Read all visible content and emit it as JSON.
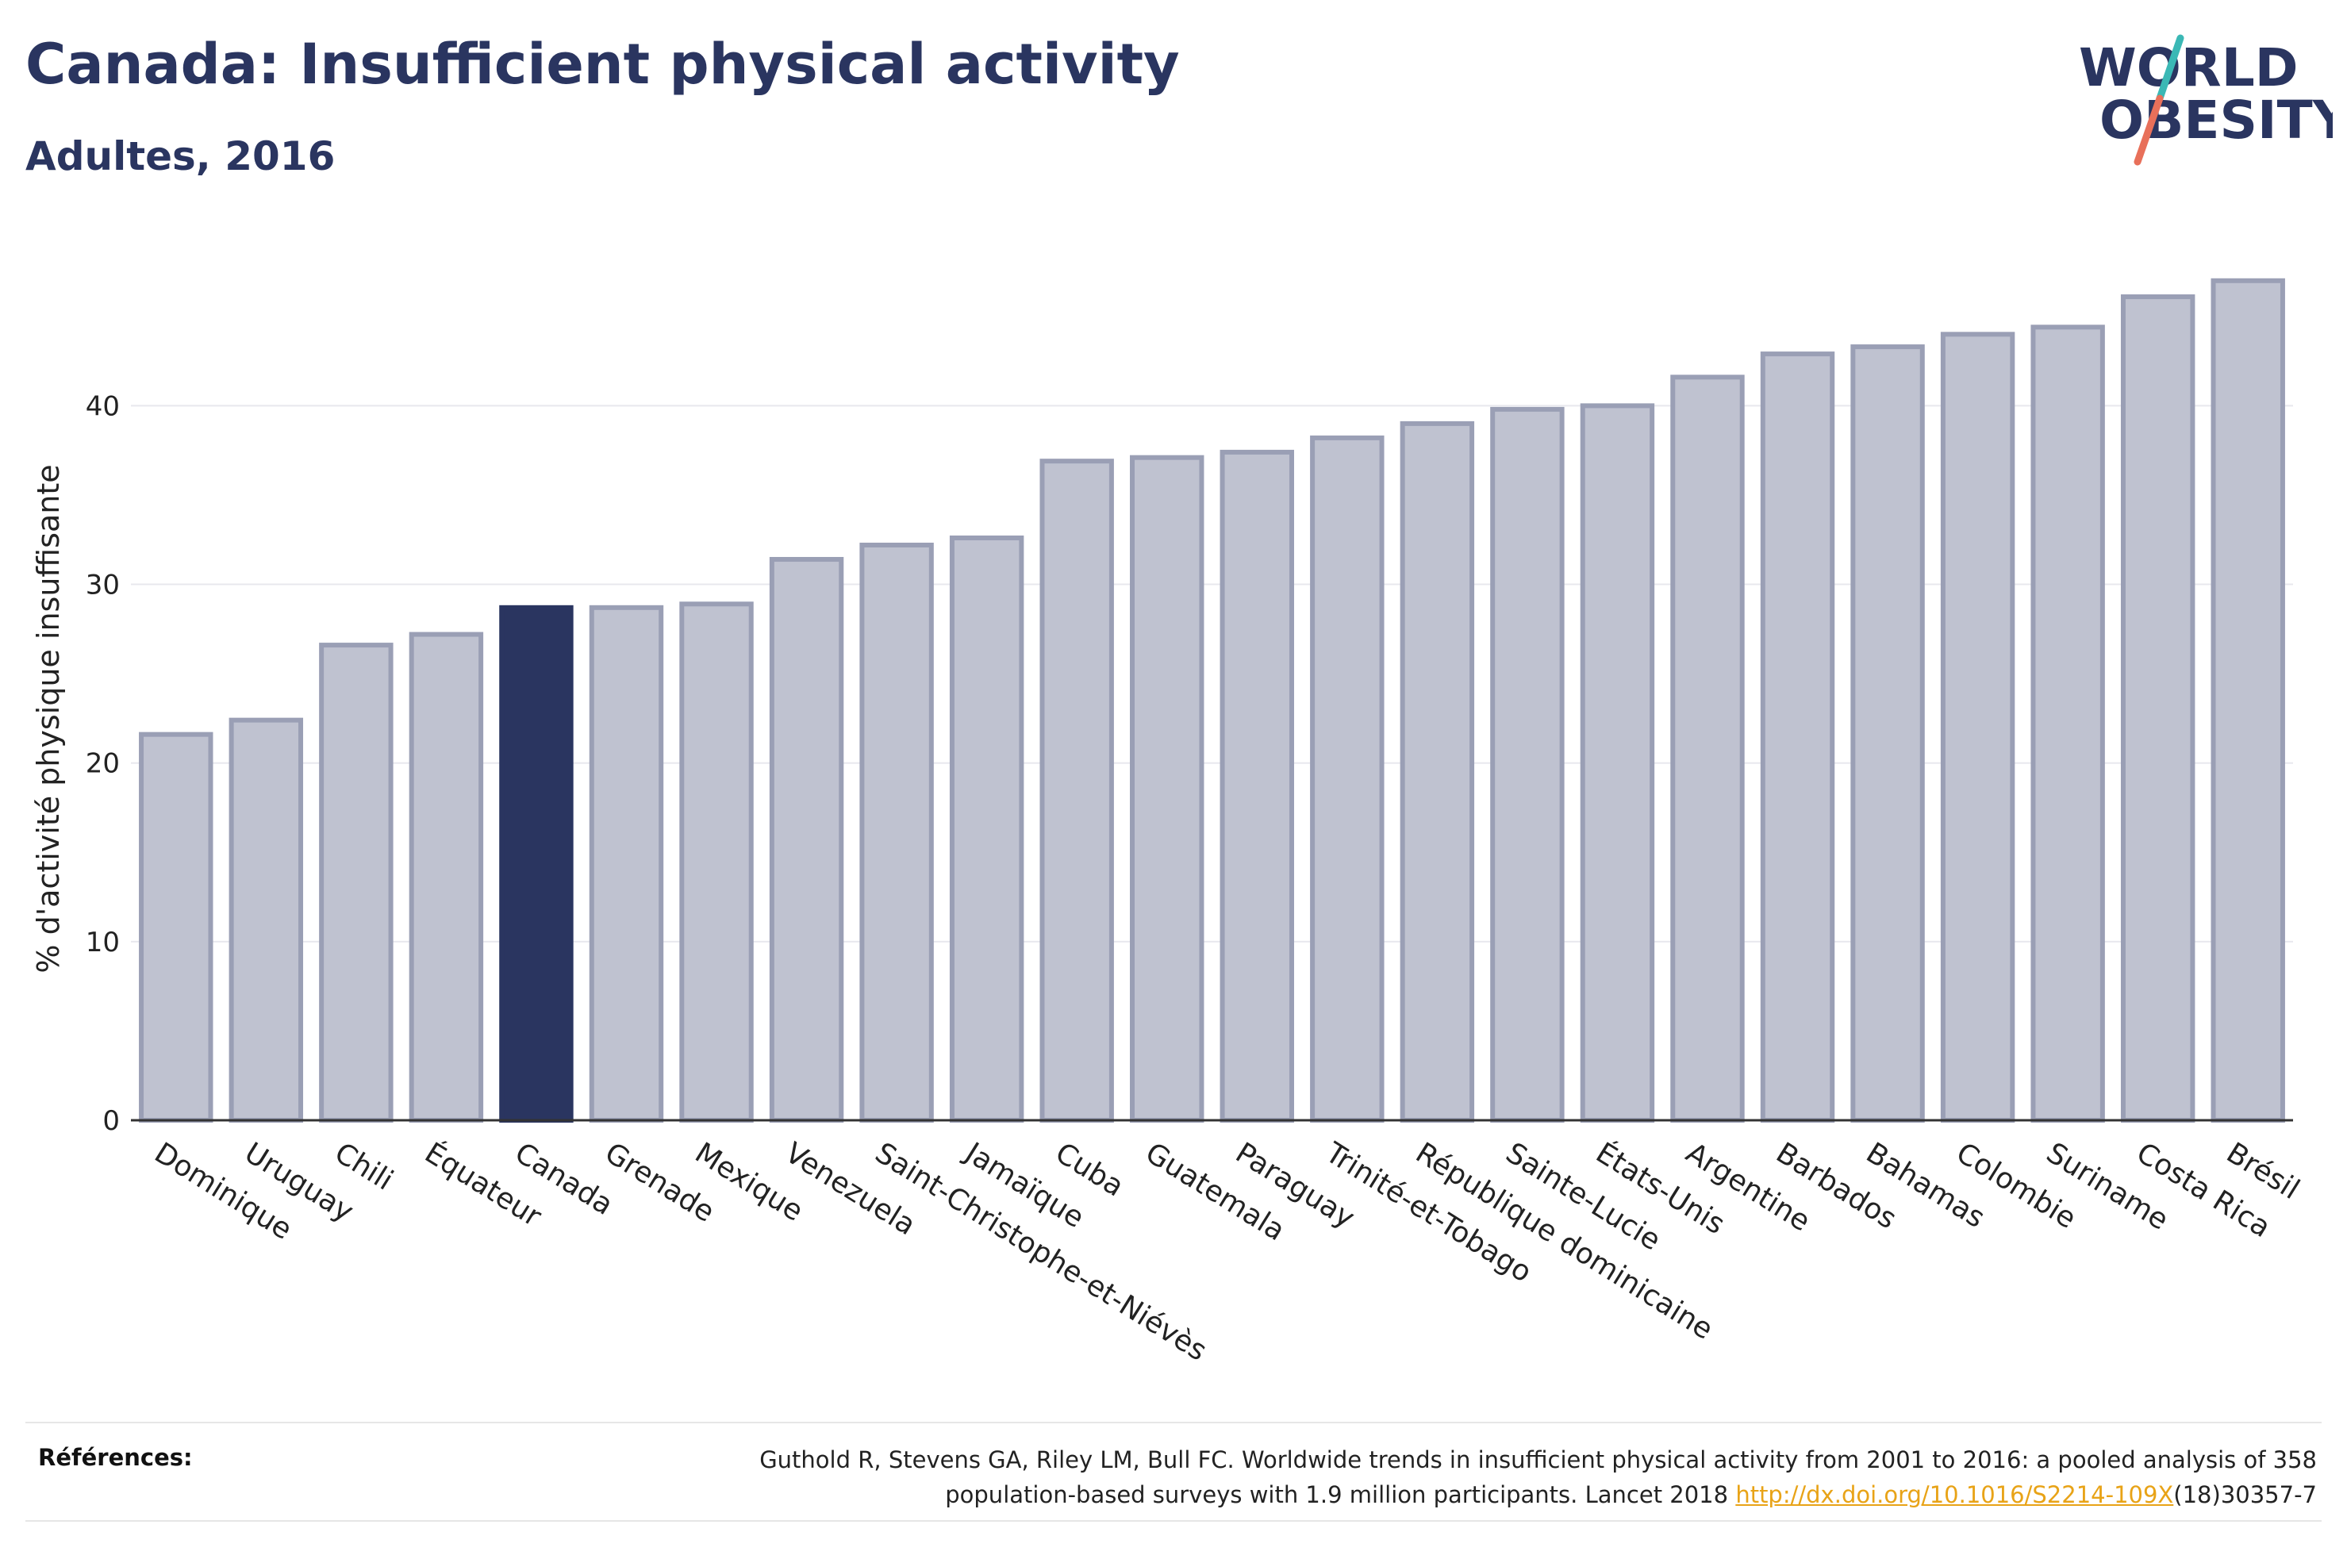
{
  "header": {
    "title": "Canada: Insufficient physical activity",
    "subtitle": "Adultes, 2016"
  },
  "logo": {
    "line1": "WORLD",
    "line2": "OBESITY"
  },
  "references": {
    "label": "Références:",
    "text_line1": "Guthold R, Stevens GA, Riley LM, Bull FC. Worldwide trends in insufficient physical activity from 2001 to 2016: a pooled analysis of 358",
    "text_line2_prefix": "population-based surveys with 1.9 million participants. Lancet 2018 ",
    "link": "http://dx.doi.org/10.1016/S2214-109X",
    "text_line2_suffix": "(18)30357-7"
  },
  "colors": {
    "bar": "#bfc2d0",
    "bar_border": "#9a9fb5",
    "highlight": "#2a3560",
    "text": "#2a3560",
    "link": "#e8a317",
    "logo_slash_top": "#3bb8b5",
    "logo_slash_bottom": "#e8705a"
  },
  "chart_data": {
    "type": "bar",
    "categories": [
      "Dominique",
      "Uruguay",
      "Chili",
      "Équateur",
      "Canada",
      "Grenade",
      "Mexique",
      "Venezuela",
      "Saint-Christophe-et-Niévès",
      "Jamaïque",
      "Cuba",
      "Guatemala",
      "Paraguay",
      "Trinité-et-Tobago",
      "République dominicaine",
      "Sainte-Lucie",
      "États-Unis",
      "Argentine",
      "Barbados",
      "Bahamas",
      "Colombie",
      "Suriname",
      "Costa Rica",
      "Brésil"
    ],
    "values": [
      21.6,
      22.4,
      26.6,
      27.2,
      28.7,
      28.7,
      28.9,
      31.4,
      32.2,
      32.6,
      36.9,
      37.1,
      37.4,
      38.2,
      39.0,
      39.8,
      40.0,
      41.6,
      42.9,
      43.3,
      44.0,
      44.4,
      46.1,
      47.0
    ],
    "highlight": "Canada",
    "ylabel": "% d'activité physique insuffisante",
    "xlabel": "",
    "ylim": [
      0,
      48.5
    ],
    "yticks": [
      0,
      10,
      20,
      30,
      40
    ],
    "grid": true
  }
}
